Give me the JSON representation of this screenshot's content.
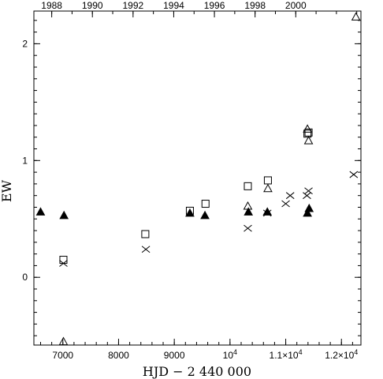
{
  "chart_data": {
    "type": "scatter",
    "title": "",
    "xlabel": "HJD − 2 440 000",
    "ylabel": "EW",
    "xlim": [
      6480,
      12350
    ],
    "ylim": [
      -0.58,
      2.28
    ],
    "x_ticks_bottom": [
      {
        "value": 7000,
        "label": "7000"
      },
      {
        "value": 8000,
        "label": "8000"
      },
      {
        "value": 9000,
        "label": "9000"
      },
      {
        "value": 10000,
        "label": "10",
        "exp": "4"
      },
      {
        "value": 11000,
        "label": "1.1×10",
        "exp": "4"
      },
      {
        "value": 12000,
        "label": "1.2×10",
        "exp": "4"
      }
    ],
    "x_ticks_top": [
      {
        "value": 6800,
        "label": "1988"
      },
      {
        "value": 7530,
        "label": "1990"
      },
      {
        "value": 8260,
        "label": "1992"
      },
      {
        "value": 8990,
        "label": "1994"
      },
      {
        "value": 9720,
        "label": "1996"
      },
      {
        "value": 10450,
        "label": "1998"
      },
      {
        "value": 11180,
        "label": "2000"
      }
    ],
    "y_ticks": [
      {
        "value": 0,
        "label": "0"
      },
      {
        "value": 1,
        "label": "1"
      },
      {
        "value": 2,
        "label": "2"
      }
    ],
    "grid": false,
    "series": [
      {
        "marker": "filled-triangle",
        "points": [
          {
            "x": 6600,
            "y": 0.56
          },
          {
            "x": 7020,
            "y": 0.53
          },
          {
            "x": 9280,
            "y": 0.55
          },
          {
            "x": 9550,
            "y": 0.53
          },
          {
            "x": 10330,
            "y": 0.56
          },
          {
            "x": 10670,
            "y": 0.56
          },
          {
            "x": 11390,
            "y": 0.55
          },
          {
            "x": 11420,
            "y": 0.59
          }
        ]
      },
      {
        "marker": "open-square",
        "points": [
          {
            "x": 7010,
            "y": 0.15
          },
          {
            "x": 8480,
            "y": 0.37
          },
          {
            "x": 9280,
            "y": 0.57
          },
          {
            "x": 9560,
            "y": 0.63
          },
          {
            "x": 10320,
            "y": 0.78
          },
          {
            "x": 10680,
            "y": 0.83
          },
          {
            "x": 11390,
            "y": 1.23
          },
          {
            "x": 11410,
            "y": 1.24
          }
        ]
      },
      {
        "marker": "open-triangle",
        "points": [
          {
            "x": 7010,
            "y": -0.55
          },
          {
            "x": 10320,
            "y": 0.61
          },
          {
            "x": 10680,
            "y": 0.76
          },
          {
            "x": 11390,
            "y": 1.27
          },
          {
            "x": 11410,
            "y": 1.17
          },
          {
            "x": 12260,
            "y": 2.23
          }
        ]
      },
      {
        "marker": "cross",
        "points": [
          {
            "x": 7010,
            "y": 0.12
          },
          {
            "x": 8490,
            "y": 0.24
          },
          {
            "x": 10320,
            "y": 0.42
          },
          {
            "x": 10670,
            "y": 0.55
          },
          {
            "x": 11000,
            "y": 0.63
          },
          {
            "x": 11080,
            "y": 0.7
          },
          {
            "x": 11380,
            "y": 0.7
          },
          {
            "x": 11410,
            "y": 0.74
          },
          {
            "x": 12220,
            "y": 0.88
          }
        ]
      }
    ]
  }
}
